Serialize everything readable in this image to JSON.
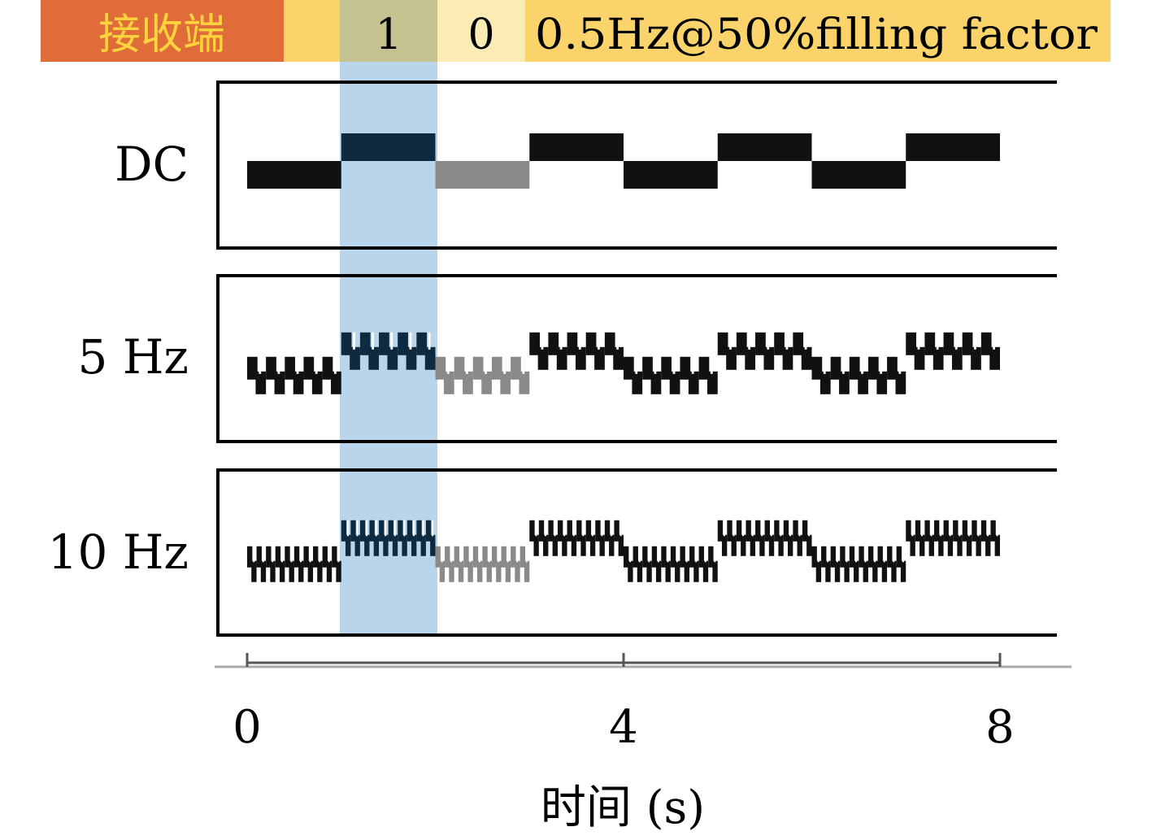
{
  "header": {
    "receiver_label": "接收端",
    "bit_one": "1",
    "bit_zero": "0",
    "signal_desc": "0.5Hz@50%filling factor"
  },
  "colors": {
    "receiver_bg": "#e06c3a",
    "receiver_text": "#ffd33d",
    "header_yellow": "#fad46b",
    "bit_one_bg": "#c4c28e",
    "bit_zero_bg": "#fdebb5",
    "highlight_blue": "#b9d5ec",
    "trace": "#111111",
    "trace_gray": "#8a8a8a",
    "trace_blue": "#0d2a40",
    "axis": "#aaaaaa"
  },
  "chart_data": {
    "type": "line",
    "xlabel": "时间 (s)",
    "xlim": [
      0,
      8
    ],
    "xticks": [
      0,
      4,
      8
    ],
    "ylabel": "",
    "bit_pattern": [
      0,
      1,
      0,
      1,
      0,
      1,
      0,
      1
    ],
    "highlight": {
      "bit_one_interval": [
        1,
        2
      ],
      "bit_zero_interval": [
        2,
        3
      ]
    },
    "series": [
      {
        "name": "DC",
        "modulation_hz": 0,
        "low": 0,
        "high": 1
      },
      {
        "name": "5 Hz",
        "modulation_hz": 5,
        "low": 0,
        "high": 1
      },
      {
        "name": "10 Hz",
        "modulation_hz": 10,
        "low": 0,
        "high": 1
      }
    ]
  }
}
